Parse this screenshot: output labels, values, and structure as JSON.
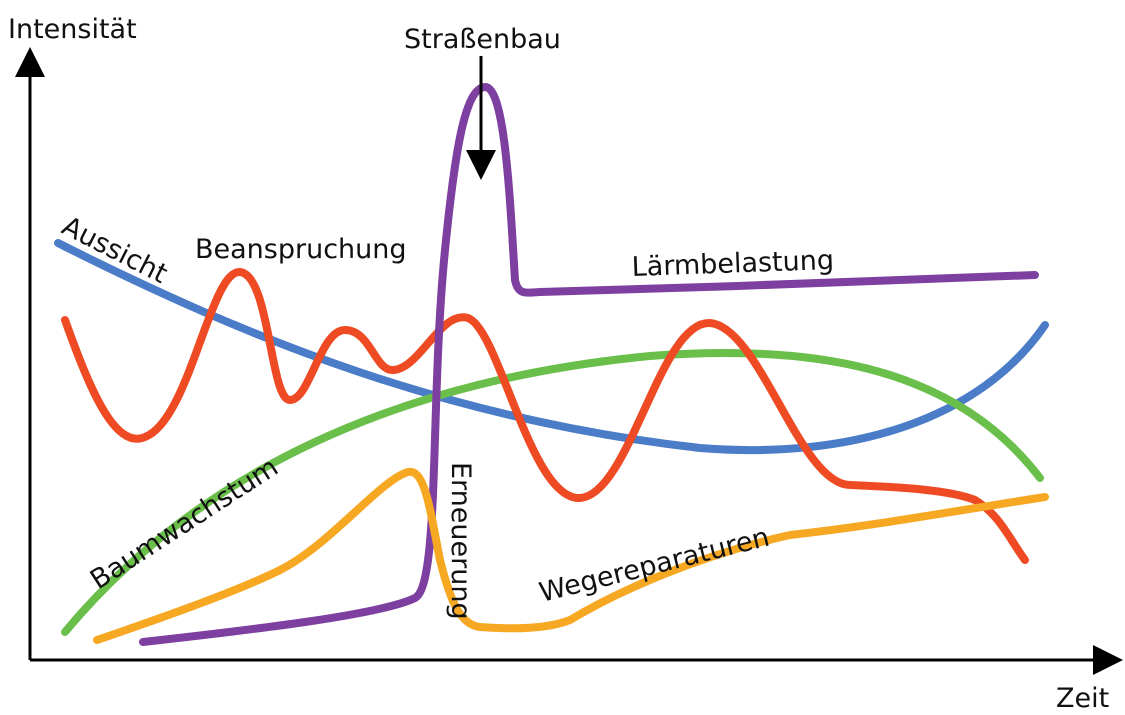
{
  "axes": {
    "y_label": "Intensität",
    "x_label": "Zeit"
  },
  "curves": [
    {
      "label": "Aussicht"
    },
    {
      "label": "Beanspruchung"
    },
    {
      "label": "Lärmbelastung"
    },
    {
      "label": "Baumwachstum"
    },
    {
      "label": "Erneuerung"
    },
    {
      "label": "Wegereparaturen"
    }
  ],
  "annotation": {
    "label": "Straßenbau"
  }
}
